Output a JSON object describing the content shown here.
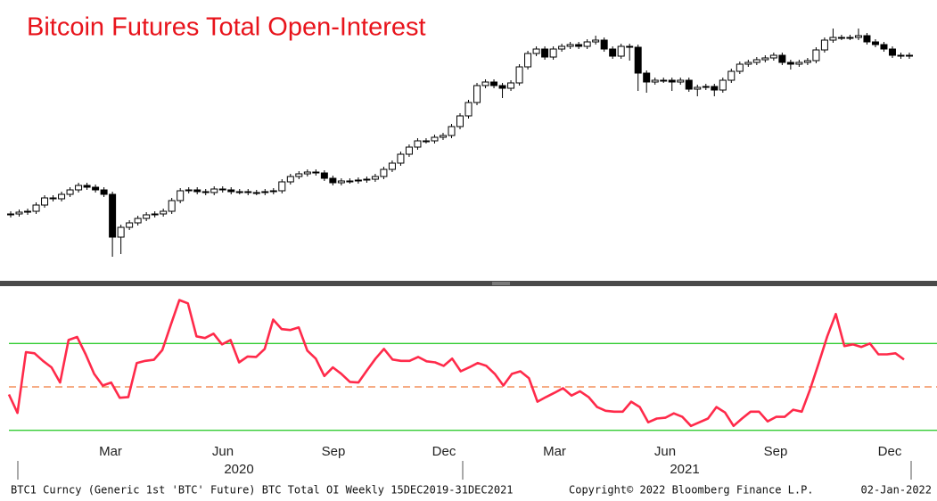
{
  "chart_data": [
    {
      "type": "candlestick",
      "title": "Bitcoin Futures Total Open-Interest",
      "ylim": [
        0,
        155
      ],
      "title_color": "#e8141c",
      "open": [
        34.5,
        35,
        36,
        36.5,
        40,
        44,
        43.5,
        46,
        48.5,
        51,
        50,
        48.5,
        46,
        22,
        27.5,
        30,
        32.5,
        34.5,
        35,
        36.5,
        42.5,
        48,
        48.5,
        47.5,
        47,
        49,
        48.5,
        47.5,
        47.5,
        47,
        47,
        47.5,
        48,
        53,
        56,
        57.5,
        58.5,
        58,
        55,
        52.5,
        53.5,
        53.5,
        54,
        54.5,
        56,
        60,
        63.5,
        68.5,
        72.5,
        76,
        76,
        78,
        79,
        84,
        90,
        97.5,
        107,
        109,
        107,
        105.5,
        108.5,
        117.5,
        125,
        127.5,
        123,
        127.5,
        129,
        130,
        129,
        131.5,
        132.5,
        127.5,
        123.5,
        129,
        128.5,
        114,
        109,
        110,
        110,
        109,
        110,
        105,
        106,
        106.5,
        104.5,
        110,
        115,
        119,
        120,
        121.5,
        122.5,
        124,
        120,
        119,
        120,
        121,
        127,
        132.5,
        134,
        134,
        134,
        135,
        131.5,
        130,
        127.5,
        124,
        123.5
      ],
      "high": [
        36.5,
        37.5,
        38,
        41.5,
        45.5,
        45.5,
        47.5,
        50,
        52.5,
        52.5,
        51.5,
        50,
        47.5,
        29,
        31.5,
        34,
        36,
        36.5,
        38,
        44,
        49.5,
        50,
        50,
        49,
        50.5,
        50.5,
        50,
        49,
        49,
        48.5,
        49,
        49.5,
        54.5,
        57.5,
        59,
        60,
        60,
        59.5,
        56.5,
        55,
        55,
        55.5,
        56,
        57.5,
        61.5,
        65,
        70,
        74,
        77.5,
        77.5,
        79.5,
        80.5,
        85.5,
        91.5,
        99,
        108.5,
        110.5,
        110.5,
        108.5,
        110,
        119,
        126.5,
        129,
        129,
        129,
        130.5,
        131.5,
        131.5,
        133,
        135,
        134,
        129,
        130.5,
        130.5,
        130,
        115.5,
        111.5,
        111.5,
        111.5,
        111.5,
        111.5,
        107.5,
        108,
        108,
        111.5,
        116.5,
        120.5,
        121.5,
        123,
        124,
        125.5,
        125.5,
        121.5,
        121.5,
        122.5,
        128.5,
        134,
        139,
        135.5,
        135.5,
        139,
        136.5,
        133,
        131.5,
        129,
        125.5,
        125.5
      ],
      "low": [
        33,
        33.5,
        34.5,
        35,
        38.5,
        42,
        42,
        44.5,
        47,
        48.5,
        47,
        44.5,
        11,
        12.5,
        26,
        28.5,
        31,
        33,
        33.5,
        35,
        41,
        46.5,
        46,
        45.5,
        45.5,
        47,
        46,
        46,
        45.5,
        45.5,
        45.5,
        46,
        46.5,
        51.5,
        54.5,
        56,
        56.5,
        53.5,
        51,
        51,
        52,
        52,
        52.5,
        53,
        54.5,
        58.5,
        62,
        67,
        71,
        74.5,
        74.5,
        76.5,
        77.5,
        82.5,
        88.5,
        96,
        105.5,
        105.5,
        100,
        104,
        107,
        116,
        123.5,
        121.5,
        121.5,
        126,
        127.5,
        127.5,
        127.5,
        130,
        126,
        122,
        122,
        121,
        104,
        103,
        107.5,
        108.5,
        104,
        107.5,
        103.5,
        101,
        104.5,
        101,
        103,
        108.5,
        113.5,
        117.5,
        118.5,
        120,
        121,
        118.5,
        116,
        117.5,
        118.5,
        119.5,
        125.5,
        131,
        132.5,
        132.5,
        132.5,
        130,
        128.5,
        126,
        122.5,
        122,
        122
      ],
      "close": [
        35,
        36,
        36.5,
        40,
        44,
        43.5,
        46,
        48.5,
        51,
        50,
        48.5,
        46,
        22,
        27.5,
        30,
        32.5,
        34.5,
        35,
        36.5,
        42.5,
        48,
        48.5,
        47.5,
        47,
        49,
        48.5,
        47.5,
        47.5,
        47,
        47,
        47.5,
        48,
        53,
        56,
        57.5,
        58.5,
        58,
        55,
        52.5,
        53.5,
        53.5,
        54,
        54.5,
        56,
        60,
        63.5,
        68.5,
        72.5,
        76,
        76,
        78,
        79,
        84,
        90,
        97.5,
        107,
        109,
        107,
        105.5,
        108.5,
        117.5,
        125,
        127.5,
        123,
        127.5,
        129,
        130,
        129,
        131.5,
        132.5,
        127.5,
        123.5,
        129,
        128.5,
        114,
        109,
        110,
        110,
        109,
        110,
        105,
        106,
        106.5,
        104.5,
        110,
        115,
        119,
        120,
        121.5,
        122.5,
        124,
        120,
        119,
        120,
        121,
        127,
        132.5,
        134,
        134,
        134,
        135,
        131.5,
        130,
        127.5,
        124,
        123.5,
        124
      ]
    },
    {
      "type": "line",
      "ylim": [
        27,
        96
      ],
      "color": "#ff2a4a",
      "reference_lines": [
        {
          "value": 70,
          "color": "#33cc33",
          "dashed": false
        },
        {
          "value": 50,
          "color": "#f07a3c",
          "dashed": true
        },
        {
          "value": 30,
          "color": "#33cc33",
          "dashed": false
        }
      ],
      "values": [
        46.5,
        38,
        66,
        65.5,
        62,
        59,
        52,
        71.6,
        73,
        65,
        56,
        50.6,
        52,
        45,
        45.3,
        61,
        62,
        62.5,
        67,
        78.7,
        90,
        88.5,
        73.3,
        72.5,
        74.5,
        69.6,
        71.6,
        61.3,
        64,
        63.8,
        67.5,
        81,
        76.6,
        76.2,
        77.4,
        66.7,
        63,
        55,
        59,
        56,
        52.3,
        52,
        57.6,
        63,
        67.5,
        62.6,
        62,
        62,
        63.8,
        61.8,
        61.3,
        59.7,
        63,
        57.2,
        59,
        61,
        59.7,
        56,
        50.6,
        56,
        57.2,
        54,
        43.2,
        45.3,
        47.3,
        49.4,
        46,
        48,
        45.3,
        40.7,
        39,
        38.6,
        38.6,
        43.2,
        40.7,
        33.7,
        35.4,
        35.8,
        37.8,
        36.2,
        32,
        33.7,
        35.4,
        40.7,
        38.2,
        32,
        35.4,
        38.6,
        38.6,
        34.1,
        36.2,
        36.2,
        39.5,
        38.6,
        49,
        61,
        73.3,
        83.6,
        68.8,
        69.6,
        68.4,
        70,
        65,
        65,
        65.5,
        62.6
      ]
    }
  ],
  "x_axis": {
    "months": [
      "Mar",
      "Jun",
      "Sep",
      "Dec",
      "Mar",
      "Jun",
      "Sep",
      "Dec"
    ],
    "years": [
      "2020",
      "2021"
    ]
  },
  "footer": {
    "description": "BTC1 Curncy (Generic 1st 'BTC' Future) BTC Total OI  Weekly 15DEC2019-31DEC2021",
    "copyright": "Copyright© 2022 Bloomberg Finance L.P.",
    "date": "02-Jan-2022"
  }
}
